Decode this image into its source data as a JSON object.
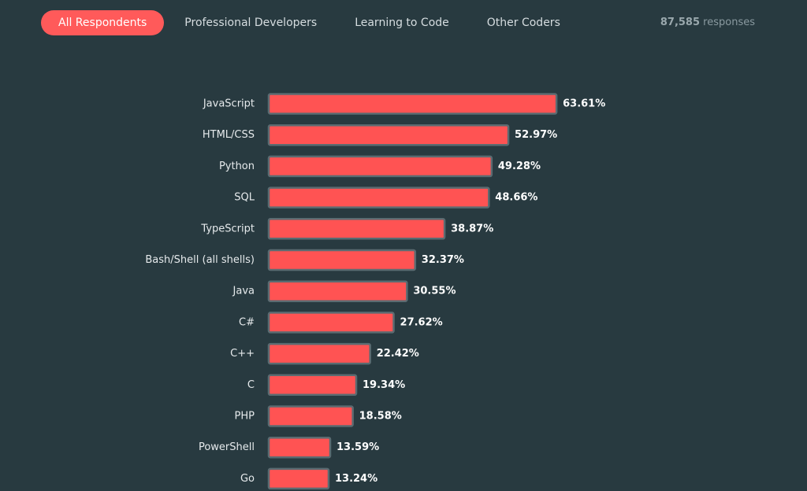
{
  "tabs": [
    "All Respondents",
    "Professional Developers",
    "Learning to Code",
    "Other Coders"
  ],
  "active_tab": 0,
  "responses": {
    "count": "87,585",
    "label": "responses"
  },
  "chart_data": {
    "type": "hbar",
    "color": "#ff5353",
    "categories": [
      "JavaScript",
      "HTML/CSS",
      "Python",
      "SQL",
      "TypeScript",
      "Bash/Shell (all shells)",
      "Java",
      "C#",
      "C++",
      "C",
      "PHP",
      "PowerShell",
      "Go"
    ],
    "values": [
      63.61,
      52.97,
      49.28,
      48.66,
      38.87,
      32.37,
      30.55,
      27.62,
      22.42,
      19.34,
      18.58,
      13.59,
      13.24
    ],
    "value_labels": [
      "63.61%",
      "52.97%",
      "49.28%",
      "48.66%",
      "38.87%",
      "32.37%",
      "30.55%",
      "27.62%",
      "22.42%",
      "19.34%",
      "18.58%",
      "13.59%",
      "13.24%"
    ]
  }
}
